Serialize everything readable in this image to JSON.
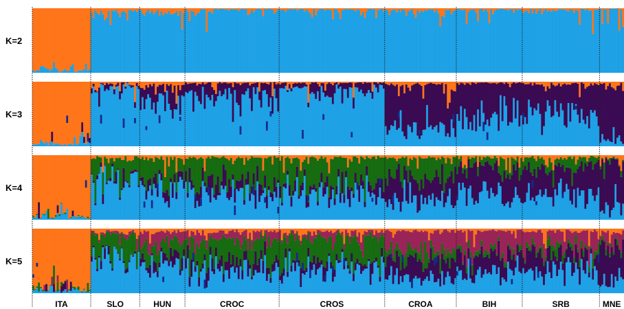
{
  "chart_data": {
    "type": "bar",
    "stacked": true,
    "description_kind": "admixture-structure-plot",
    "rows": [
      {
        "label": "K=2",
        "k": 2
      },
      {
        "label": "K=3",
        "k": 3
      },
      {
        "label": "K=4",
        "k": 4
      },
      {
        "label": "K=5",
        "k": 5
      }
    ],
    "populations": [
      {
        "label": "ITA",
        "n": 31
      },
      {
        "label": "SLO",
        "n": 26
      },
      {
        "label": "HUN",
        "n": 24
      },
      {
        "label": "CROC",
        "n": 50
      },
      {
        "label": "CROS",
        "n": 56
      },
      {
        "label": "CROA",
        "n": 38
      },
      {
        "label": "BIH",
        "n": 35
      },
      {
        "label": "SRB",
        "n": 41
      },
      {
        "label": "MNE",
        "n": 13
      }
    ],
    "ylim": [
      0,
      1
    ],
    "cluster_colors": [
      "#ff7519",
      "#1fa1e6",
      "#3a0a52",
      "#176b10",
      "#9a2458"
    ],
    "cluster_names": [
      "orange",
      "light-blue",
      "dark-purple",
      "green",
      "magenta"
    ],
    "secondary_color": "#152a8a",
    "mean_proportions": {
      "K=2": {
        "ITA": [
          0.96,
          0.04
        ],
        "SLO": [
          0.05,
          0.95
        ],
        "HUN": [
          0.05,
          0.95
        ],
        "CROC": [
          0.02,
          0.98
        ],
        "CROS": [
          0.02,
          0.98
        ],
        "CROA": [
          0.03,
          0.97
        ],
        "BIH": [
          0.02,
          0.98
        ],
        "SRB": [
          0.02,
          0.98
        ],
        "MNE": [
          0.01,
          0.99
        ]
      },
      "K=3": {
        "ITA": [
          0.96,
          0.04,
          0.0
        ],
        "SLO": [
          0.04,
          0.92,
          0.04
        ],
        "HUN": [
          0.06,
          0.75,
          0.19
        ],
        "CROC": [
          0.02,
          0.78,
          0.2
        ],
        "CROS": [
          0.02,
          0.88,
          0.1
        ],
        "CROA": [
          0.04,
          0.3,
          0.66
        ],
        "BIH": [
          0.02,
          0.47,
          0.51
        ],
        "SRB": [
          0.04,
          0.5,
          0.46
        ],
        "MNE": [
          0.05,
          0.1,
          0.85
        ]
      },
      "K=4": {
        "ITA": [
          0.95,
          0.04,
          0.0,
          0.01
        ],
        "SLO": [
          0.04,
          0.66,
          0.03,
          0.27
        ],
        "HUN": [
          0.05,
          0.55,
          0.12,
          0.28
        ],
        "CROC": [
          0.04,
          0.42,
          0.14,
          0.4
        ],
        "CROS": [
          0.04,
          0.45,
          0.11,
          0.4
        ],
        "CROA": [
          0.04,
          0.28,
          0.4,
          0.28
        ],
        "BIH": [
          0.04,
          0.38,
          0.42,
          0.16
        ],
        "SRB": [
          0.04,
          0.4,
          0.43,
          0.13
        ],
        "MNE": [
          0.05,
          0.15,
          0.78,
          0.02
        ]
      },
      "K=5": {
        "ITA": [
          0.95,
          0.04,
          0.0,
          0.01,
          0.0
        ],
        "SLO": [
          0.05,
          0.6,
          0.03,
          0.28,
          0.04
        ],
        "HUN": [
          0.06,
          0.45,
          0.1,
          0.24,
          0.15
        ],
        "CROC": [
          0.05,
          0.35,
          0.13,
          0.35,
          0.12
        ],
        "CROS": [
          0.05,
          0.4,
          0.1,
          0.38,
          0.07
        ],
        "CROA": [
          0.04,
          0.25,
          0.3,
          0.13,
          0.28
        ],
        "BIH": [
          0.03,
          0.35,
          0.24,
          0.08,
          0.3
        ],
        "SRB": [
          0.04,
          0.38,
          0.28,
          0.08,
          0.22
        ],
        "MNE": [
          0.05,
          0.2,
          0.55,
          0.05,
          0.15
        ]
      }
    }
  }
}
